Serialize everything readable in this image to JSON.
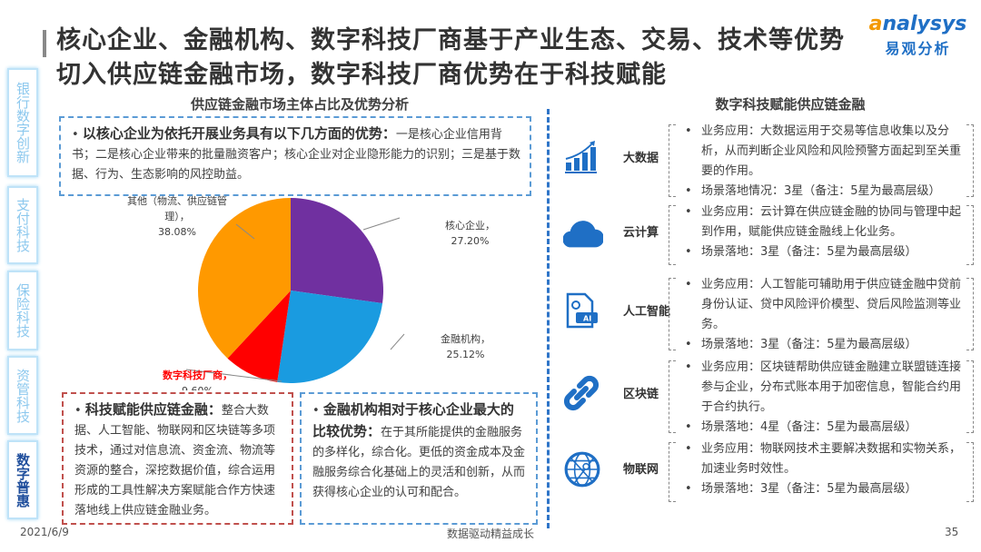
{
  "title": "核心企业、金融机构、数字科技厂商基于产业生态、交易、技术等优势切入供应链金融市场，数字科技厂商优势在于科技赋能",
  "logo": {
    "brand": "analysys",
    "cn": "易观分析"
  },
  "sidebar": [
    {
      "label": "银行数字创新"
    },
    {
      "label": "支付科技"
    },
    {
      "label": "保险科技"
    },
    {
      "label": "资管科技"
    },
    {
      "label": "数字普惠",
      "active": true
    }
  ],
  "left": {
    "section_title": "供应链金融市场主体占比及优势分析",
    "box1": {
      "bold": "以核心企业为依托开展业务具有以下几方面的优势：",
      "text": "一是核心企业信用背书；二是核心企业带来的批量融资客户；核心企业对企业隐形能力的识别；三是基于数据、行为、生态影响的风控助益。"
    },
    "box2": {
      "bold": "科技赋能供应链金融：",
      "text": "整合大数据、人工智能、物联网和区块链等多项技术，通过对信息流、资金流、物流等资源的整合，深挖数据价值，综合运用形成的工具性解决方案赋能合作方快速落地线上供应链金融业务。"
    },
    "box3": {
      "bold": "金融机构相对于核心企业最大的比较优势：",
      "text": "在于其所能提供的金融服务的多样化，综合化。更低的资金成本及金融服务综合化基础上的灵活和创新，从而获得核心企业的认可和配合。"
    }
  },
  "chart_data": {
    "type": "pie",
    "start": "top, clockwise",
    "slices": [
      {
        "label": "核心企业，",
        "value": 27.2,
        "value_label": "27.20%",
        "color": "#7030a0"
      },
      {
        "label": "金融机构，",
        "value": 25.12,
        "value_label": "25.12%",
        "color": "#1a9be0"
      },
      {
        "label": "数字科技厂商，",
        "value": 9.6,
        "value_label": "9.60%",
        "color": "#ff0000",
        "label_color": "#ff0000"
      },
      {
        "label": "其他（物流、供应链管理），",
        "value": 38.08,
        "value_label": "38.08%",
        "color": "#ff9900"
      }
    ]
  },
  "right": {
    "section_title": "数字科技赋能供应链金融",
    "rows": [
      {
        "icon": "bar-chart-growth-icon",
        "label": "大数据",
        "items": [
          "业务应用：大数据运用于交易等信息收集以及分析，从而判断企业风险和风险预警方面起到至关重要的作用。",
          "场景落地情况：3星（备注：5星为最高层级）"
        ]
      },
      {
        "icon": "cloud-icon",
        "label": "云计算",
        "items": [
          "业务应用：云计算在供应链金融的协同与管理中起到作用，赋能供应链金融线上化业务。",
          "场景落地：3星（备注：5星为最高层级）"
        ]
      },
      {
        "icon": "ai-document-icon",
        "label": "人工智能",
        "items": [
          "业务应用：人工智能可辅助用于供应链金融中贷前身份认证、贷中风险评价模型、贷后风险监测等业务。",
          "场景落地：3星（备注：5星为最高层级）"
        ]
      },
      {
        "icon": "chain-link-icon",
        "label": "区块链",
        "items": [
          "业务应用：区块链帮助供应链金融建立联盟链连接参与企业，分布式账本用于加密信息，智能合约用于合约执行。",
          "场景落地：4星（备注：5星为最高层级）"
        ]
      },
      {
        "icon": "globe-network-icon",
        "label": "物联网",
        "items": [
          "业务应用：物联网技术主要解决数据和实物关系，加速业务时效性。",
          "场景落地：3星（备注：5星为最高层级）"
        ]
      }
    ]
  },
  "footer": {
    "date": "2021/6/9",
    "slogan": "数据驱动精益成长",
    "page": "35"
  },
  "colors": {
    "accent": "#2f75c8",
    "title": "#333333"
  }
}
